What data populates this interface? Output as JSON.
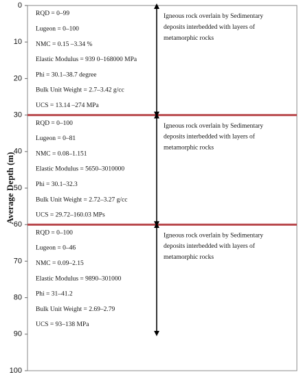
{
  "axis": {
    "label": "Average Depth (m)",
    "lim": [
      0,
      100
    ],
    "ticks": [
      0,
      10,
      20,
      30,
      40,
      50,
      60,
      70,
      80,
      90,
      100
    ]
  },
  "boundaries": [
    30,
    60
  ],
  "layers": [
    {
      "arrow": [
        0,
        30
      ],
      "properties": [
        "RQD = 0–99",
        "Lugeon = 0–100",
        "NMC = 0.15 –3.34 %",
        "Elastic Modulus = 939 0–168000 MPa",
        "Phi = 30.1–38.7 degree",
        "Bulk Unit Weight = 2.7–3.42 g/cc",
        "UCS = 13.14 –274 MPa"
      ],
      "description": [
        "Igneous rock overlain by Sedimentary",
        "deposits interbedded with layers of",
        "metamorphic rocks"
      ]
    },
    {
      "arrow": [
        30,
        60
      ],
      "properties": [
        "RQD = 0–100",
        "Lugeon = 0–81",
        "NMC = 0.08–1.151",
        "Elastic Modulus = 5650–3010000",
        "Phi = 30.1–32.3",
        "Bulk Unit Weight = 2.72–3.27 g/cc",
        "UCS = 29.72–160.03 MPs"
      ],
      "description": [
        "Igneous rock overlain by Sedimentary",
        "deposits interbedded with layers of",
        "metamorphic rocks"
      ]
    },
    {
      "arrow": [
        60,
        90
      ],
      "properties": [
        "RQD = 0–100",
        "Lugeon = 0–46",
        "NMC = 0.09–2.15",
        "Elastic Modulus = 9890–301000",
        "Phi = 31–41.2",
        "Bulk Unit Weight = 2.69–2.79",
        "UCS = 93–138 MPa"
      ],
      "description": [
        "Igneous rock overlain by Sedimentary",
        "deposits interbedded with layers of",
        "metamorphic rocks"
      ]
    }
  ]
}
